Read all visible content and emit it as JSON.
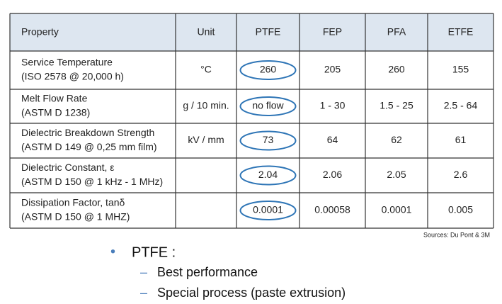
{
  "table": {
    "header": [
      "Property",
      "Unit",
      "PTFE",
      "FEP",
      "PFA",
      "ETFE"
    ],
    "rows": [
      {
        "property": "Service Temperature",
        "standard": "(ISO 2578 @ 20,000 h)",
        "cells": [
          "°C",
          "260",
          "205",
          "260",
          "155"
        ]
      },
      {
        "property": "Melt Flow Rate",
        "standard": "(ASTM D 1238)",
        "cells": [
          "g / 10 min.",
          "no flow",
          "1 - 30",
          "1.5 - 25",
          "2.5 - 64"
        ]
      },
      {
        "property": "Dielectric Breakdown Strength",
        "standard": "(ASTM D 149 @ 0,25 mm film)",
        "cells": [
          "kV / mm",
          "73",
          "64",
          "62",
          "61"
        ]
      },
      {
        "property": "Dielectric Constant, ε",
        "standard": "(ASTM D 150 @ 1 kHz - 1 MHz)",
        "cells": [
          null,
          "2.04",
          "2.06",
          "2.05",
          "2.6"
        ]
      },
      {
        "property": "Dissipation Factor, tanδ",
        "standard": "(ASTM D 150 @ 1 MHZ)",
        "cells": [
          null,
          "0.0001",
          "0.00058",
          "0.0001",
          "0.005"
        ]
      }
    ],
    "sources": "Sources: Du Pont & 3M"
  },
  "bullets": {
    "main": "PTFE :",
    "subs": [
      "Best performance",
      "Special process (paste extrusion)"
    ]
  }
}
